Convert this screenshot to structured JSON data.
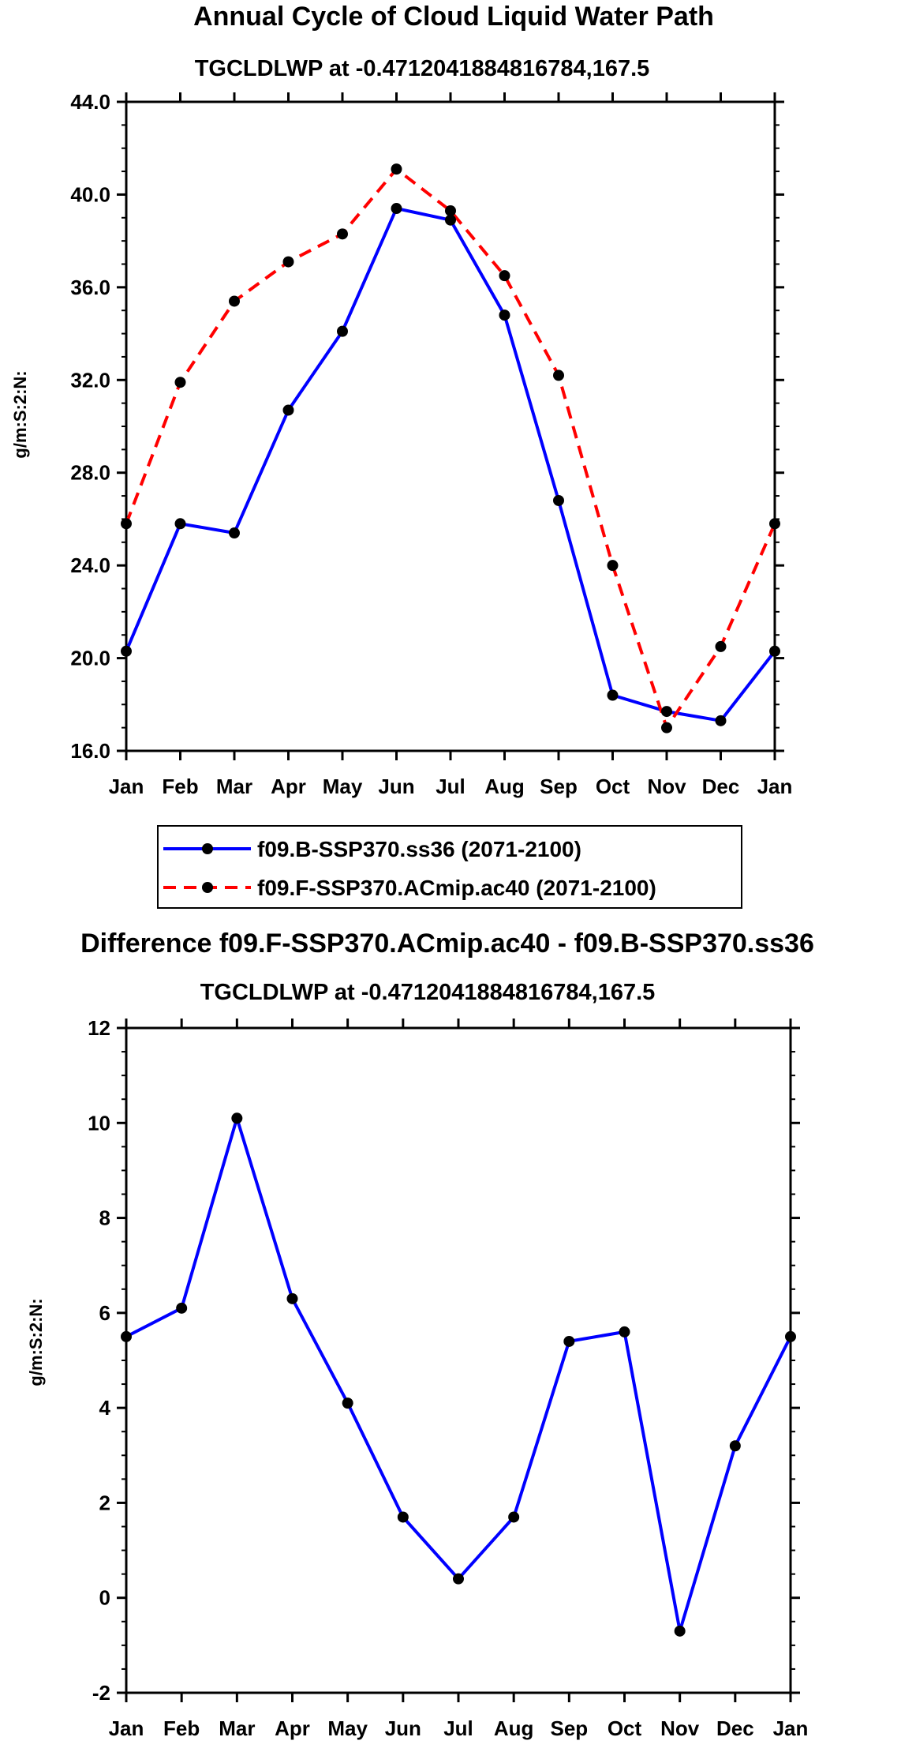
{
  "chart_data": [
    {
      "type": "line",
      "title": "Annual Cycle of Cloud Liquid Water Path",
      "subtitle": "TGCLDLWP at -0.4712041884816784,167.5",
      "xlabel": "",
      "ylabel": "g/m:S:2:N:",
      "categories": [
        "Jan",
        "Feb",
        "Mar",
        "Apr",
        "May",
        "Jun",
        "Jul",
        "Aug",
        "Sep",
        "Oct",
        "Nov",
        "Dec",
        "Jan"
      ],
      "ylim": [
        16.0,
        44.0
      ],
      "yticks": [
        "16.0",
        "20.0",
        "24.0",
        "28.0",
        "32.0",
        "36.0",
        "40.0",
        "44.0"
      ],
      "series": [
        {
          "name": "f09.B-SSP370.ss36 (2071-2100)",
          "color": "#0000ff",
          "dash": "solid",
          "values": [
            20.3,
            25.8,
            25.4,
            30.7,
            34.1,
            39.4,
            38.9,
            34.8,
            26.8,
            18.4,
            17.7,
            17.3,
            20.3
          ]
        },
        {
          "name": "f09.F-SSP370.ACmip.ac40 (2071-2100)",
          "color": "#ff0000",
          "dash": "dashed",
          "values": [
            25.8,
            31.9,
            35.4,
            37.1,
            38.3,
            41.1,
            39.3,
            36.5,
            32.2,
            24.0,
            17.0,
            20.5,
            25.8
          ]
        }
      ]
    },
    {
      "type": "line",
      "title": "Difference f09.F-SSP370.ACmip.ac40 - f09.B-SSP370.ss36",
      "subtitle": "TGCLDLWP at -0.4712041884816784,167.5",
      "xlabel": "",
      "ylabel": "g/m:S:2:N:",
      "categories": [
        "Jan",
        "Feb",
        "Mar",
        "Apr",
        "May",
        "Jun",
        "Jul",
        "Aug",
        "Sep",
        "Oct",
        "Nov",
        "Dec",
        "Jan"
      ],
      "ylim": [
        -2,
        12
      ],
      "yticks": [
        "-2",
        "0",
        "2",
        "4",
        "6",
        "8",
        "10",
        "12"
      ],
      "series": [
        {
          "name": "difference",
          "color": "#0000ff",
          "dash": "solid",
          "values": [
            5.5,
            6.1,
            10.1,
            6.3,
            4.1,
            1.7,
            0.4,
            1.7,
            5.4,
            5.6,
            -0.7,
            3.2,
            5.5
          ]
        }
      ]
    }
  ]
}
